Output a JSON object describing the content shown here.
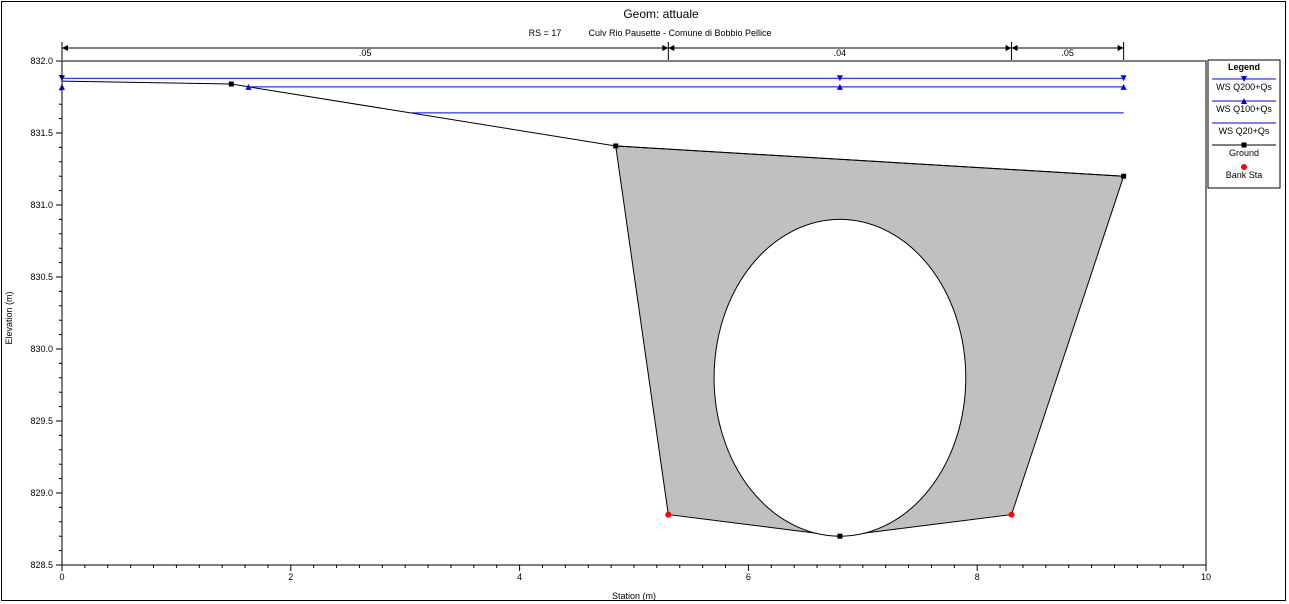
{
  "chart_data": {
    "type": "line",
    "title": "Geom: attuale",
    "subtitle_rs": "RS = 17",
    "subtitle_desc": "Culv Rio Pausette - Comune di Bobbio Pellice",
    "xlabel": "Station (m)",
    "ylabel": "Elevation (m)",
    "xlim": [
      0,
      10
    ],
    "ylim": [
      828.5,
      832.0
    ],
    "x_ticks": [
      0,
      2,
      4,
      6,
      8,
      10
    ],
    "y_ticks": [
      828.5,
      829.0,
      829.5,
      830.0,
      830.5,
      831.0,
      831.5,
      832.0
    ],
    "x_tick_labels": [
      "0",
      "2",
      "4",
      "6",
      "8",
      "10"
    ],
    "y_tick_labels": [
      "828.5",
      "829.0",
      "829.5",
      "830.0",
      "830.5",
      "831.0",
      "831.5",
      "832.0"
    ],
    "grid": false,
    "legend_position": "top-right",
    "legend_title": "Legend",
    "manning": [
      {
        "label": ".05",
        "from": 0,
        "to": 5.3
      },
      {
        "label": ".04",
        "from": 5.3,
        "to": 8.3
      },
      {
        "label": ".05",
        "from": 8.3,
        "to": 9.28
      }
    ],
    "water_surfaces": [
      {
        "name": "WS Q200+Qs",
        "elevation": 831.88,
        "from": 0,
        "to": 9.28,
        "marker": "triangle-down",
        "markers_x": [
          0,
          6.8,
          9.28
        ],
        "color": "#0000ff"
      },
      {
        "name": "WS Q100+Qs",
        "elevation": 831.82,
        "from": 1.63,
        "to": 9.28,
        "marker": "triangle-up",
        "markers_x": [
          0,
          1.63,
          6.8,
          9.28
        ],
        "color": "#0000ff"
      },
      {
        "name": "WS Q20+Qs",
        "elevation": 831.64,
        "from": 3.05,
        "to": 9.28,
        "marker": "none",
        "markers_x": [],
        "color": "#0000ff"
      }
    ],
    "ground": {
      "name": "Ground",
      "color": "#000000",
      "x": [
        0,
        1.48,
        4.84,
        9.28
      ],
      "y": [
        831.86,
        831.84,
        831.41,
        831.2
      ]
    },
    "culvert_deck": {
      "x": [
        4.84,
        9.28,
        8.3,
        6.8,
        5.3
      ],
      "y": [
        831.41,
        831.2,
        828.85,
        828.7,
        828.85
      ],
      "fill": "#c0c0c0"
    },
    "culvert_opening": {
      "shape": "ellipse",
      "center_x": 6.8,
      "center_y": 829.8,
      "half_width": 1.1,
      "half_height": 1.1,
      "fill": "#ffffff"
    },
    "ground_points": [
      {
        "x": 1.48,
        "y": 831.84
      },
      {
        "x": 4.84,
        "y": 831.41
      },
      {
        "x": 9.28,
        "y": 831.2
      },
      {
        "x": 6.8,
        "y": 828.7
      }
    ],
    "bank_stations": {
      "name": "Bank Sta",
      "color": "#ff0000",
      "points": [
        {
          "x": 5.3,
          "y": 828.85
        },
        {
          "x": 8.3,
          "y": 828.85
        }
      ]
    }
  }
}
